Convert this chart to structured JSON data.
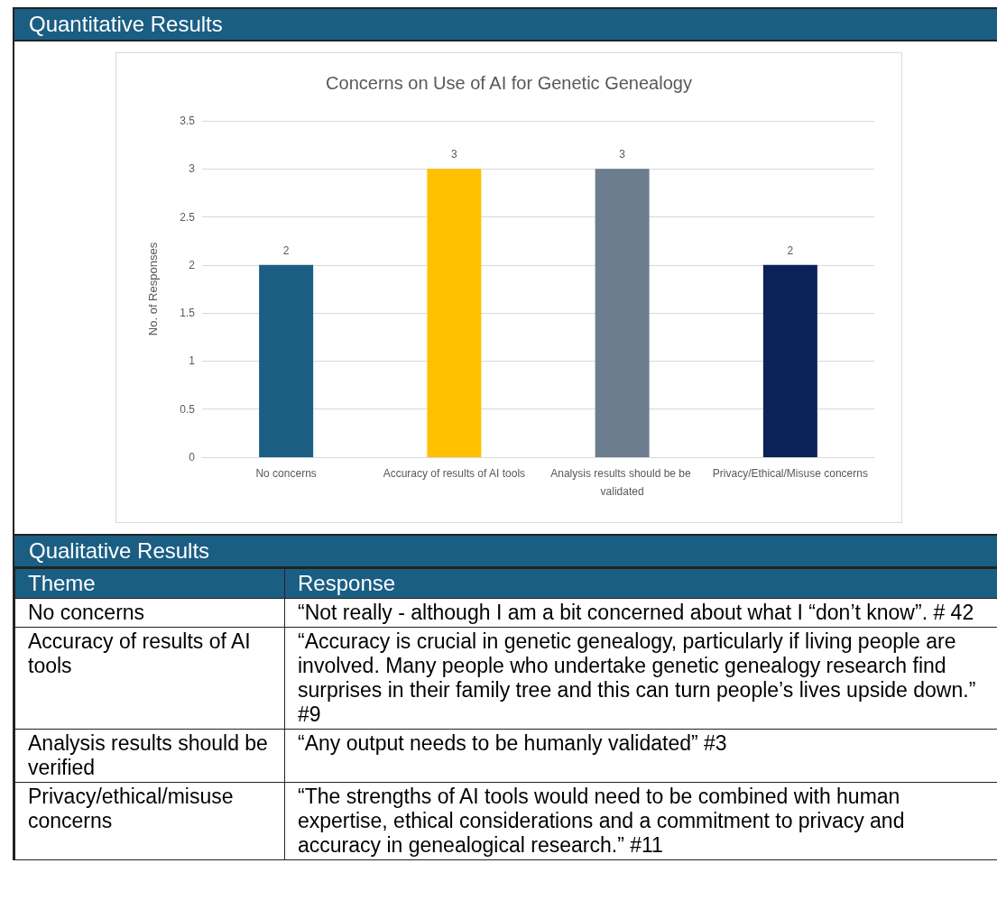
{
  "chart_data": {
    "type": "bar",
    "title": "Concerns on Use of AI for Genetic Genealogy",
    "ylabel": "No. of Responses",
    "categories": [
      "No concerns",
      "Accuracy of results of AI tools",
      "Analysis results should be be validated",
      "Privacy/Ethical/Misuse concerns"
    ],
    "values": [
      2,
      3,
      3,
      2
    ],
    "colors": [
      "#1b5e84",
      "#ffc000",
      "#6b7d8f",
      "#0b2258"
    ],
    "ylim": [
      0,
      3.5
    ],
    "yticks": [
      0,
      0.5,
      1,
      1.5,
      2,
      2.5,
      3,
      3.5
    ],
    "grid": "y",
    "data_labels": true,
    "annotations": [
      "Quantitative Results",
      "Qualitative Results",
      "Theme",
      "Response",
      "No concerns",
      "“Not really - although I am a bit concerned about what I “don’t know”. # 42",
      "Accuracy of results of AI tools",
      "“Accuracy is crucial in genetic genealogy, particularly if living people are involved.  Many people who undertake genetic genealogy research find surprises in their family tree and this can turn people’s lives upside down.” #9",
      "Analysis results should be verified",
      "“Any output needs to be humanly validated” #3",
      "Privacy/ethical/misuse concerns",
      "“The strengths of AI tools would need to be combined with human expertise, ethical considerations and a commitment to privacy and accuracy in genealogical research.” #11"
    ]
  }
}
